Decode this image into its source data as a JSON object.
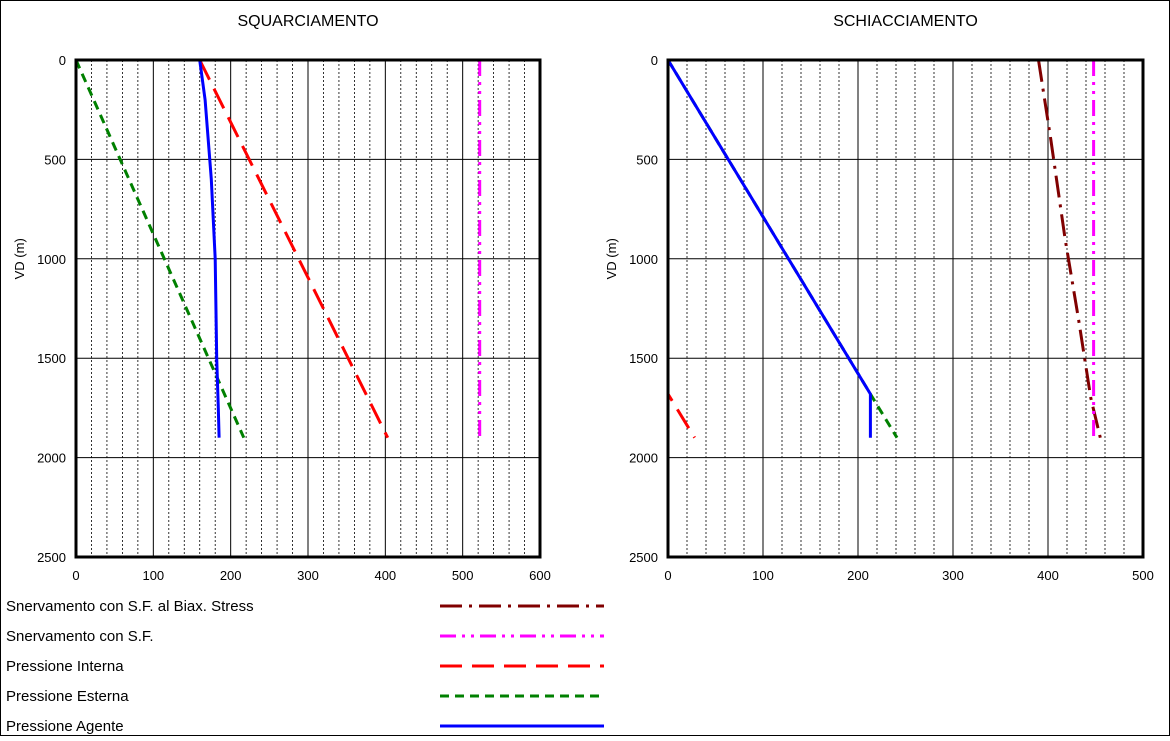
{
  "chart_data": [
    {
      "type": "line",
      "title": "SQUARCIAMENTO",
      "xlabel": "",
      "ylabel": "VD (m)",
      "xlim": [
        0,
        600
      ],
      "ylim": [
        2500,
        0
      ],
      "y_inverted": true,
      "x_ticks": [
        "0",
        "100",
        "200",
        "300",
        "400",
        "500",
        "600"
      ],
      "y_ticks": [
        "0",
        "500",
        "1000",
        "1500",
        "2000",
        "2500"
      ],
      "grid": true,
      "series": [
        {
          "name": "Snervamento con S.F.",
          "color": "#ff00ff",
          "dash": "dash-dot-dot",
          "points": [
            [
              522,
              0
            ],
            [
              522,
              1900
            ]
          ]
        },
        {
          "name": "Pressione Interna",
          "color": "#ff0000",
          "dash": "long-dash",
          "points": [
            [
              160,
              0
            ],
            [
              403,
              1900
            ]
          ]
        },
        {
          "name": "Pressione Esterna",
          "color": "#008000",
          "dash": "dash",
          "points": [
            [
              0,
              0
            ],
            [
              217,
              1900
            ]
          ]
        },
        {
          "name": "Pressione Agente",
          "color": "#0000ff",
          "dash": "solid",
          "points": [
            [
              160,
              0
            ],
            [
              167,
              200
            ],
            [
              175,
              600
            ],
            [
              180,
              1000
            ],
            [
              182,
              1500
            ],
            [
              184,
              1750
            ],
            [
              185,
              1900
            ]
          ]
        }
      ]
    },
    {
      "type": "line",
      "title": "SCHIACCIAMENTO",
      "xlabel": "",
      "ylabel": "VD (m)",
      "xlim": [
        0,
        500
      ],
      "ylim": [
        2500,
        0
      ],
      "y_inverted": true,
      "x_ticks": [
        "0",
        "100",
        "200",
        "300",
        "400",
        "500"
      ],
      "y_ticks": [
        "0",
        "500",
        "1000",
        "1500",
        "2000",
        "2500"
      ],
      "grid": true,
      "series": [
        {
          "name": "Snervamento con S.F. al  Biax. Stress",
          "color": "#800000",
          "dash": "dash-dot",
          "points": [
            [
              390,
              0
            ],
            [
              403,
              400
            ],
            [
              418,
              900
            ],
            [
              432,
              1300
            ],
            [
              445,
              1700
            ],
            [
              455,
              1900
            ]
          ]
        },
        {
          "name": "Snervamento con S.F.",
          "color": "#ff00ff",
          "dash": "dash-dot-dot",
          "points": [
            [
              448,
              0
            ],
            [
              448,
              1900
            ]
          ]
        },
        {
          "name": "Pressione Interna",
          "color": "#ff0000",
          "dash": "long-dash",
          "points": [
            [
              0,
              0
            ],
            [
              0,
              1680
            ],
            [
              28,
              1900
            ]
          ]
        },
        {
          "name": "Pressione Esterna",
          "color": "#008000",
          "dash": "dash",
          "points": [
            [
              0,
              0
            ],
            [
              213,
              1680
            ],
            [
              241,
              1900
            ]
          ]
        },
        {
          "name": "Pressione Agente",
          "color": "#0000ff",
          "dash": "solid",
          "points": [
            [
              0,
              0
            ],
            [
              213,
              1680
            ],
            [
              213,
              1900
            ]
          ]
        }
      ]
    }
  ],
  "legend": {
    "entries": [
      {
        "label": "Snervamento con S.F. al  Biax. Stress",
        "color": "#800000",
        "dash": "dash-dot"
      },
      {
        "label": "Snervamento con S.F.",
        "color": "#ff00ff",
        "dash": "dash-dot-dot"
      },
      {
        "label": "Pressione Interna",
        "color": "#ff0000",
        "dash": "long-dash"
      },
      {
        "label": "Pressione Esterna",
        "color": "#008000",
        "dash": "dash"
      },
      {
        "label": "Pressione Agente",
        "color": "#0000ff",
        "dash": "solid"
      }
    ]
  }
}
